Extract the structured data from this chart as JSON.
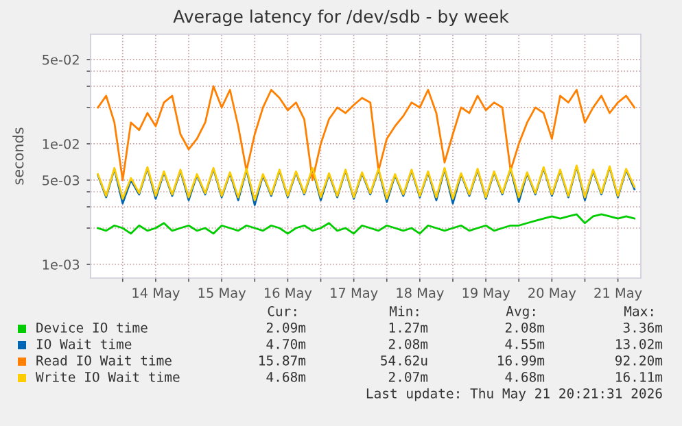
{
  "chart_data": {
    "type": "line",
    "title": "Average latency for /dev/sdb - by week",
    "ylabel": "seconds",
    "log": "y",
    "grid": true,
    "legend": "bottom",
    "xlim": [
      "2026-05-13T12:20",
      "2026-05-21T20:20"
    ],
    "xticks": [
      {
        "value": "2026-05-14T00:00",
        "label": null
      },
      {
        "value": "2026-05-14T12:00",
        "label": "14 May"
      },
      {
        "value": "2026-05-15T00:00",
        "label": null
      },
      {
        "value": "2026-05-15T12:00",
        "label": "15 May"
      },
      {
        "value": "2026-05-16T00:00",
        "label": null
      },
      {
        "value": "2026-05-16T12:00",
        "label": "16 May"
      },
      {
        "value": "2026-05-17T00:00",
        "label": null
      },
      {
        "value": "2026-05-17T12:00",
        "label": "17 May"
      },
      {
        "value": "2026-05-18T00:00",
        "label": null
      },
      {
        "value": "2026-05-18T12:00",
        "label": "18 May"
      },
      {
        "value": "2026-05-19T00:00",
        "label": null
      },
      {
        "value": "2026-05-19T12:00",
        "label": "19 May"
      },
      {
        "value": "2026-05-20T00:00",
        "label": null
      },
      {
        "value": "2026-05-20T12:00",
        "label": "20 May"
      },
      {
        "value": "2026-05-21T00:00",
        "label": null
      },
      {
        "value": "2026-05-21T12:00",
        "label": "21 May"
      }
    ],
    "ylim": [
      0.00077,
      0.081
    ],
    "yticks": [
      {
        "value": 0.001,
        "label": "1e-03"
      },
      {
        "value": 0.002,
        "label": null
      },
      {
        "value": 0.003,
        "label": null
      },
      {
        "value": 0.004,
        "label": null
      },
      {
        "value": 0.005,
        "label": "5e-03"
      },
      {
        "value": 0.01,
        "label": "1e-02"
      },
      {
        "value": 0.02,
        "label": null
      },
      {
        "value": 0.03,
        "label": null
      },
      {
        "value": 0.04,
        "label": null
      },
      {
        "value": 0.05,
        "label": "5e-02"
      }
    ],
    "x": [
      "2026-05-13T15:00",
      "2026-05-13T18:00",
      "2026-05-13T21:00",
      "2026-05-14T00:00",
      "2026-05-14T03:00",
      "2026-05-14T06:00",
      "2026-05-14T09:00",
      "2026-05-14T12:00",
      "2026-05-14T15:00",
      "2026-05-14T18:00",
      "2026-05-14T21:00",
      "2026-05-15T00:00",
      "2026-05-15T03:00",
      "2026-05-15T06:00",
      "2026-05-15T09:00",
      "2026-05-15T12:00",
      "2026-05-15T15:00",
      "2026-05-15T18:00",
      "2026-05-15T21:00",
      "2026-05-16T00:00",
      "2026-05-16T03:00",
      "2026-05-16T06:00",
      "2026-05-16T09:00",
      "2026-05-16T12:00",
      "2026-05-16T15:00",
      "2026-05-16T18:00",
      "2026-05-16T21:00",
      "2026-05-17T00:00",
      "2026-05-17T03:00",
      "2026-05-17T06:00",
      "2026-05-17T09:00",
      "2026-05-17T12:00",
      "2026-05-17T15:00",
      "2026-05-17T18:00",
      "2026-05-17T21:00",
      "2026-05-18T00:00",
      "2026-05-18T03:00",
      "2026-05-18T06:00",
      "2026-05-18T09:00",
      "2026-05-18T12:00",
      "2026-05-18T15:00",
      "2026-05-18T18:00",
      "2026-05-18T21:00",
      "2026-05-19T00:00",
      "2026-05-19T03:00",
      "2026-05-19T06:00",
      "2026-05-19T09:00",
      "2026-05-19T12:00",
      "2026-05-19T15:00",
      "2026-05-19T18:00",
      "2026-05-19T21:00",
      "2026-05-20T00:00",
      "2026-05-20T03:00",
      "2026-05-20T06:00",
      "2026-05-20T09:00",
      "2026-05-20T12:00",
      "2026-05-20T15:00",
      "2026-05-20T18:00",
      "2026-05-20T21:00",
      "2026-05-21T00:00",
      "2026-05-21T03:00",
      "2026-05-21T06:00",
      "2026-05-21T09:00",
      "2026-05-21T12:00",
      "2026-05-21T15:00",
      "2026-05-21T18:00"
    ],
    "series": [
      {
        "name": "Device IO time",
        "color": "#00cc00",
        "values": [
          0.002,
          0.0019,
          0.0021,
          0.002,
          0.0018,
          0.0021,
          0.0019,
          0.002,
          0.0022,
          0.0019,
          0.002,
          0.0021,
          0.0019,
          0.002,
          0.0018,
          0.0021,
          0.002,
          0.0019,
          0.0021,
          0.002,
          0.0019,
          0.0021,
          0.002,
          0.0018,
          0.002,
          0.0021,
          0.0019,
          0.002,
          0.0022,
          0.0019,
          0.002,
          0.0018,
          0.0021,
          0.002,
          0.0019,
          0.0021,
          0.002,
          0.0019,
          0.002,
          0.0018,
          0.0021,
          0.002,
          0.0019,
          0.002,
          0.0021,
          0.0019,
          0.002,
          0.0021,
          0.0019,
          0.002,
          0.0021,
          0.0021,
          0.0022,
          0.0023,
          0.0024,
          0.0025,
          0.0024,
          0.0025,
          0.0026,
          0.0022,
          0.0025,
          0.0026,
          0.0025,
          0.0024,
          0.0025,
          0.0024
        ]
      },
      {
        "name": "IO Wait time",
        "color": "#0066b3",
        "values": [
          0.0055,
          0.0036,
          0.0062,
          0.0032,
          0.005,
          0.0038,
          0.0063,
          0.0035,
          0.0058,
          0.0037,
          0.006,
          0.0034,
          0.0055,
          0.0038,
          0.0062,
          0.0036,
          0.0057,
          0.0034,
          0.0061,
          0.0031,
          0.0055,
          0.0037,
          0.006,
          0.0036,
          0.0058,
          0.0038,
          0.0062,
          0.0034,
          0.0056,
          0.0036,
          0.006,
          0.0035,
          0.0057,
          0.0038,
          0.0061,
          0.0033,
          0.0055,
          0.0037,
          0.006,
          0.0036,
          0.0058,
          0.0034,
          0.0062,
          0.0032,
          0.0056,
          0.0037,
          0.0061,
          0.0035,
          0.0058,
          0.0038,
          0.0062,
          0.0033,
          0.0057,
          0.0038,
          0.0063,
          0.0037,
          0.006,
          0.0036,
          0.0065,
          0.0034,
          0.006,
          0.0038,
          0.0064,
          0.0036,
          0.0061,
          0.0042
        ]
      },
      {
        "name": "Read IO Wait time",
        "color": "#ff8000",
        "values": [
          0.02,
          0.025,
          0.015,
          0.005,
          0.015,
          0.013,
          0.018,
          0.014,
          0.022,
          0.025,
          0.012,
          0.009,
          0.011,
          0.015,
          0.03,
          0.02,
          0.028,
          0.014,
          0.006,
          0.012,
          0.02,
          0.028,
          0.024,
          0.019,
          0.022,
          0.016,
          0.005,
          0.01,
          0.016,
          0.02,
          0.018,
          0.021,
          0.024,
          0.022,
          0.006,
          0.011,
          0.014,
          0.017,
          0.022,
          0.02,
          0.028,
          0.018,
          0.007,
          0.012,
          0.02,
          0.018,
          0.025,
          0.019,
          0.022,
          0.02,
          0.006,
          0.01,
          0.015,
          0.02,
          0.018,
          0.011,
          0.025,
          0.022,
          0.028,
          0.015,
          0.02,
          0.025,
          0.018,
          0.022,
          0.025,
          0.02
        ]
      },
      {
        "name": "Write IO Wait time",
        "color": "#ffcc00",
        "values": [
          0.0056,
          0.0037,
          0.0063,
          0.0035,
          0.0052,
          0.0039,
          0.0064,
          0.0037,
          0.0059,
          0.0038,
          0.0061,
          0.0036,
          0.0056,
          0.0039,
          0.0063,
          0.0037,
          0.0058,
          0.0036,
          0.0062,
          0.0034,
          0.0056,
          0.0038,
          0.0061,
          0.0037,
          0.0059,
          0.0039,
          0.0063,
          0.0036,
          0.0057,
          0.0037,
          0.0061,
          0.0036,
          0.0058,
          0.0039,
          0.0062,
          0.0035,
          0.0056,
          0.0038,
          0.0061,
          0.0037,
          0.0059,
          0.0036,
          0.0063,
          0.0035,
          0.0057,
          0.0038,
          0.0062,
          0.0036,
          0.0059,
          0.0039,
          0.0063,
          0.0036,
          0.0058,
          0.0039,
          0.0064,
          0.0038,
          0.0061,
          0.0037,
          0.0066,
          0.0036,
          0.0061,
          0.0039,
          0.0065,
          0.0037,
          0.0062,
          0.0044
        ]
      }
    ],
    "annotations": [
      "Cur:",
      "Min:",
      "Avg:",
      "Max:",
      "2.09m",
      "1.27m",
      "2.08m",
      "3.36m",
      "4.70m",
      "2.08m",
      "4.55m",
      "13.02m",
      "15.87m",
      "54.62u",
      "16.99m",
      "92.20m",
      "4.68m",
      "2.07m",
      "4.68m",
      "16.11m",
      "Last update: Thu May 21 20:21:31 2026"
    ]
  }
}
